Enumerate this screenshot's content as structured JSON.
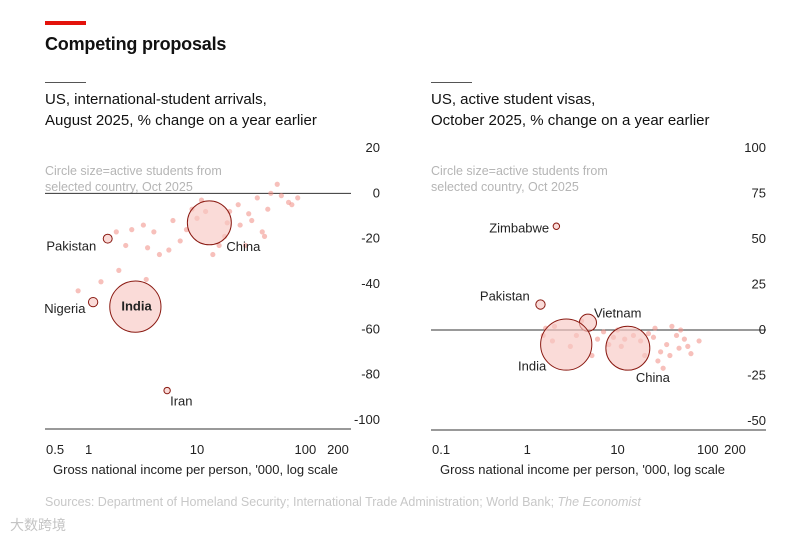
{
  "header": {
    "title": "Competing proposals"
  },
  "footer": {
    "source_prefix": "Sources: Department of Homeland Security; International Trade Administration; World Bank;",
    "source_italic": "The Economist",
    "watermark": "大数跨境"
  },
  "colors": {
    "accent": "#e3120b",
    "bubble_fill": "#f7c7c3",
    "bubble_stroke": "#8a1a12",
    "dot": "#f08c84"
  },
  "chart_data": [
    {
      "type": "scatter",
      "title_line1": "US, international-student arrivals,",
      "title_line2": "August 2025, % change on a year earlier",
      "size_note_line1": "Circle size=active students from",
      "size_note_line2": "selected country, Oct 2025",
      "xlabel": "Gross national income per person, '000, log scale",
      "xscale": "log",
      "xlim": [
        0.5,
        200
      ],
      "ylim": [
        -100,
        20
      ],
      "xticks": [
        0.5,
        1,
        10,
        100,
        200
      ],
      "xtick_labels": [
        "0.5",
        "1",
        "10",
        "100",
        "200"
      ],
      "yticks": [
        20,
        0,
        -20,
        -40,
        -60,
        -80,
        -100
      ],
      "ytick_labels": [
        "20",
        "0",
        "-20",
        "-40",
        "-60",
        "-80",
        "-100"
      ],
      "labelled": [
        {
          "name": "China",
          "x": 13,
          "y": -13,
          "size": 265
        },
        {
          "name": "India",
          "x": 2.7,
          "y": -50,
          "size": 360
        },
        {
          "name": "Pakistan",
          "x": 1.5,
          "y": -20,
          "size": 11
        },
        {
          "name": "Nigeria",
          "x": 1.1,
          "y": -48,
          "size": 12
        },
        {
          "name": "Iran",
          "x": 5.3,
          "y": -87,
          "size": 5
        }
      ],
      "points": [
        {
          "x": 45,
          "y": -7
        },
        {
          "x": 36,
          "y": -2
        },
        {
          "x": 55,
          "y": 4
        },
        {
          "x": 60,
          "y": -1
        },
        {
          "x": 70,
          "y": -4
        },
        {
          "x": 48,
          "y": 0
        },
        {
          "x": 30,
          "y": -9
        },
        {
          "x": 25,
          "y": -14
        },
        {
          "x": 40,
          "y": -17
        },
        {
          "x": 20,
          "y": -8
        },
        {
          "x": 18,
          "y": -19
        },
        {
          "x": 16,
          "y": -23
        },
        {
          "x": 9,
          "y": -7
        },
        {
          "x": 8,
          "y": -16
        },
        {
          "x": 11,
          "y": -3
        },
        {
          "x": 6,
          "y": -12
        },
        {
          "x": 7,
          "y": -21
        },
        {
          "x": 4,
          "y": -17
        },
        {
          "x": 3.2,
          "y": -14
        },
        {
          "x": 2.5,
          "y": -16
        },
        {
          "x": 2.2,
          "y": -23
        },
        {
          "x": 1.8,
          "y": -17
        },
        {
          "x": 3.5,
          "y": -24
        },
        {
          "x": 4.5,
          "y": -27
        },
        {
          "x": 5.5,
          "y": -25
        },
        {
          "x": 28,
          "y": -23
        },
        {
          "x": 32,
          "y": -12
        },
        {
          "x": 75,
          "y": -5
        },
        {
          "x": 85,
          "y": -2
        },
        {
          "x": 42,
          "y": -19
        },
        {
          "x": 1.3,
          "y": -39
        },
        {
          "x": 0.8,
          "y": -43
        },
        {
          "x": 1.9,
          "y": -34
        },
        {
          "x": 3.4,
          "y": -38
        },
        {
          "x": 14,
          "y": -27
        },
        {
          "x": 19,
          "y": -13
        },
        {
          "x": 24,
          "y": -5
        },
        {
          "x": 10,
          "y": -11
        },
        {
          "x": 12,
          "y": -8
        }
      ]
    },
    {
      "type": "scatter",
      "title_line1": "US, active student visas,",
      "title_line2": "October 2025, % change on a year earlier",
      "size_note_line1": "Circle size=active students from",
      "size_note_line2": "selected country, Oct 2025",
      "xlabel": "Gross national income per person, '000, log scale",
      "xscale": "log",
      "xlim": [
        0.1,
        200
      ],
      "ylim": [
        -50,
        100
      ],
      "xticks": [
        0.1,
        1,
        10,
        100,
        200
      ],
      "xtick_labels": [
        "0.1",
        "1",
        "10",
        "100",
        "200"
      ],
      "yticks": [
        100,
        75,
        50,
        25,
        0,
        -25,
        -50
      ],
      "ytick_labels": [
        "100",
        "75",
        "50",
        "25",
        "0",
        "-25",
        "-50"
      ],
      "labelled": [
        {
          "name": "Zimbabwe",
          "x": 2.1,
          "y": 57,
          "size": 4
        },
        {
          "name": "Pakistan",
          "x": 1.4,
          "y": 14,
          "size": 12
        },
        {
          "name": "Vietnam",
          "x": 4.7,
          "y": 4,
          "size": 40
        },
        {
          "name": "India",
          "x": 2.7,
          "y": -8,
          "size": 360
        },
        {
          "name": "China",
          "x": 13,
          "y": -10,
          "size": 265
        }
      ],
      "points": [
        {
          "x": 50,
          "y": 0
        },
        {
          "x": 45,
          "y": -3
        },
        {
          "x": 55,
          "y": -5
        },
        {
          "x": 40,
          "y": 2
        },
        {
          "x": 35,
          "y": -8
        },
        {
          "x": 30,
          "y": -12
        },
        {
          "x": 60,
          "y": -9
        },
        {
          "x": 65,
          "y": -13
        },
        {
          "x": 25,
          "y": -4
        },
        {
          "x": 22,
          "y": -2
        },
        {
          "x": 18,
          "y": -6
        },
        {
          "x": 15,
          "y": -3
        },
        {
          "x": 12,
          "y": -5
        },
        {
          "x": 9,
          "y": -4
        },
        {
          "x": 8,
          "y": -8
        },
        {
          "x": 7,
          "y": -1
        },
        {
          "x": 6,
          "y": -5
        },
        {
          "x": 3.5,
          "y": -3
        },
        {
          "x": 3,
          "y": -9
        },
        {
          "x": 2,
          "y": 2
        },
        {
          "x": 1.9,
          "y": -6
        },
        {
          "x": 1.6,
          "y": 1
        },
        {
          "x": 1.5,
          "y": -3
        },
        {
          "x": 4,
          "y": 5
        },
        {
          "x": 5.2,
          "y": -14
        },
        {
          "x": 10,
          "y": 0
        },
        {
          "x": 11,
          "y": -9
        },
        {
          "x": 28,
          "y": -17
        },
        {
          "x": 32,
          "y": -21
        },
        {
          "x": 80,
          "y": -6
        },
        {
          "x": 20,
          "y": -14
        },
        {
          "x": 26,
          "y": 1
        },
        {
          "x": 48,
          "y": -10
        },
        {
          "x": 38,
          "y": -14
        }
      ]
    }
  ]
}
